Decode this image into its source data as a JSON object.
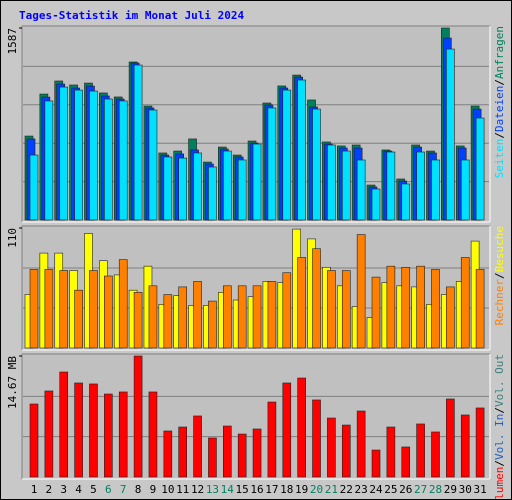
{
  "title": "Tages-Statistik im Monat Juli 2024",
  "chart_data": [
    {
      "type": "bar",
      "ylim": [
        0,
        1587
      ],
      "yticks": [
        1587
      ],
      "grid": true,
      "grid_divisions": 5,
      "separator": "/",
      "series": [
        {
          "name": "Anfragen",
          "color": "#00805c",
          "values": [
            694,
            1041,
            1149,
            1116,
            1132,
            1050,
            1017,
            1306,
            942,
            554,
            570,
            670,
            479,
            603,
            537,
            653,
            967,
            1108,
            1198,
            992,
            645,
            612,
            620,
            289,
            579,
            339,
            620,
            570,
            1587,
            612,
            942
          ]
        },
        {
          "name": "Dateien",
          "color": "#0040ff",
          "values": [
            670,
            1016,
            1124,
            1091,
            1107,
            1025,
            1000,
            1298,
            926,
            537,
            546,
            579,
            463,
            587,
            521,
            636,
            951,
            1091,
            1182,
            934,
            628,
            595,
            595,
            273,
            570,
            322,
            603,
            554,
            1504,
            595,
            917
          ]
        },
        {
          "name": "Seiten",
          "color": "#00e0ff",
          "values": [
            537,
            984,
            1099,
            1074,
            1066,
            1000,
            984,
            1281,
            909,
            521,
            512,
            554,
            438,
            570,
            496,
            628,
            926,
            1074,
            1157,
            917,
            620,
            570,
            496,
            256,
            562,
            298,
            562,
            496,
            1413,
            496,
            843
          ]
        }
      ]
    },
    {
      "type": "bar",
      "ylim": [
        0,
        110
      ],
      "yticks": [
        110
      ],
      "grid": true,
      "grid_divisions": 3,
      "separator": "/",
      "series": [
        {
          "name": "Besuche",
          "color": "#ffff00",
          "values": [
            49,
            87,
            87,
            71,
            105,
            80,
            67,
            53,
            75,
            40,
            48,
            39,
            39,
            51,
            44,
            47,
            61,
            60,
            109,
            100,
            74,
            57,
            38,
            28,
            60,
            57,
            56,
            40,
            49,
            61,
            98
          ]
        },
        {
          "name": "Rechner",
          "color": "#ff8000",
          "values": [
            72,
            72,
            71,
            53,
            71,
            66,
            81,
            51,
            57,
            49,
            56,
            61,
            43,
            57,
            57,
            57,
            61,
            69,
            83,
            91,
            71,
            71,
            104,
            65,
            75,
            74,
            75,
            72,
            56,
            83,
            72
          ]
        }
      ]
    },
    {
      "type": "bar",
      "ylim": [
        0,
        14.67
      ],
      "yticks": [
        {
          "value": 14.67,
          "label": "14.67 MB"
        }
      ],
      "grid": true,
      "grid_divisions": 3,
      "separator": "/",
      "categories": [
        "1",
        "2",
        "3",
        "4",
        "5",
        "6",
        "7",
        "8",
        "9",
        "10",
        "11",
        "12",
        "13",
        "14",
        "15",
        "16",
        "17",
        "18",
        "19",
        "20",
        "21",
        "22",
        "23",
        "24",
        "25",
        "26",
        "27",
        "28",
        "29",
        "30",
        "31"
      ],
      "category_colors": [
        "#000000",
        "#000000",
        "#000000",
        "#000000",
        "#000000",
        "#008060",
        "#008060",
        "#000000",
        "#000000",
        "#000000",
        "#000000",
        "#000000",
        "#008060",
        "#008060",
        "#000000",
        "#000000",
        "#000000",
        "#000000",
        "#000000",
        "#008060",
        "#008060",
        "#000000",
        "#000000",
        "#000000",
        "#000000",
        "#000000",
        "#008060",
        "#008060",
        "#000000",
        "#000000",
        "#000000"
      ],
      "series": [
        {
          "name": "Volumen",
          "color": "#ff0000",
          "values": [
            8.85,
            10.43,
            12.73,
            11.4,
            11.28,
            10.06,
            10.31,
            14.67,
            10.31,
            5.58,
            6.06,
            7.4,
            4.73,
            6.18,
            5.21,
            5.82,
            9.09,
            11.4,
            12.0,
            9.34,
            7.15,
            6.3,
            8.0,
            3.27,
            6.06,
            3.64,
            6.43,
            5.46,
            9.46,
            7.52,
            8.37
          ]
        }
      ],
      "legend_only": [
        {
          "name": "Vol. In",
          "color": "#2060c0"
        },
        {
          "name": "Vol. Out",
          "color": "#408080"
        }
      ]
    }
  ]
}
